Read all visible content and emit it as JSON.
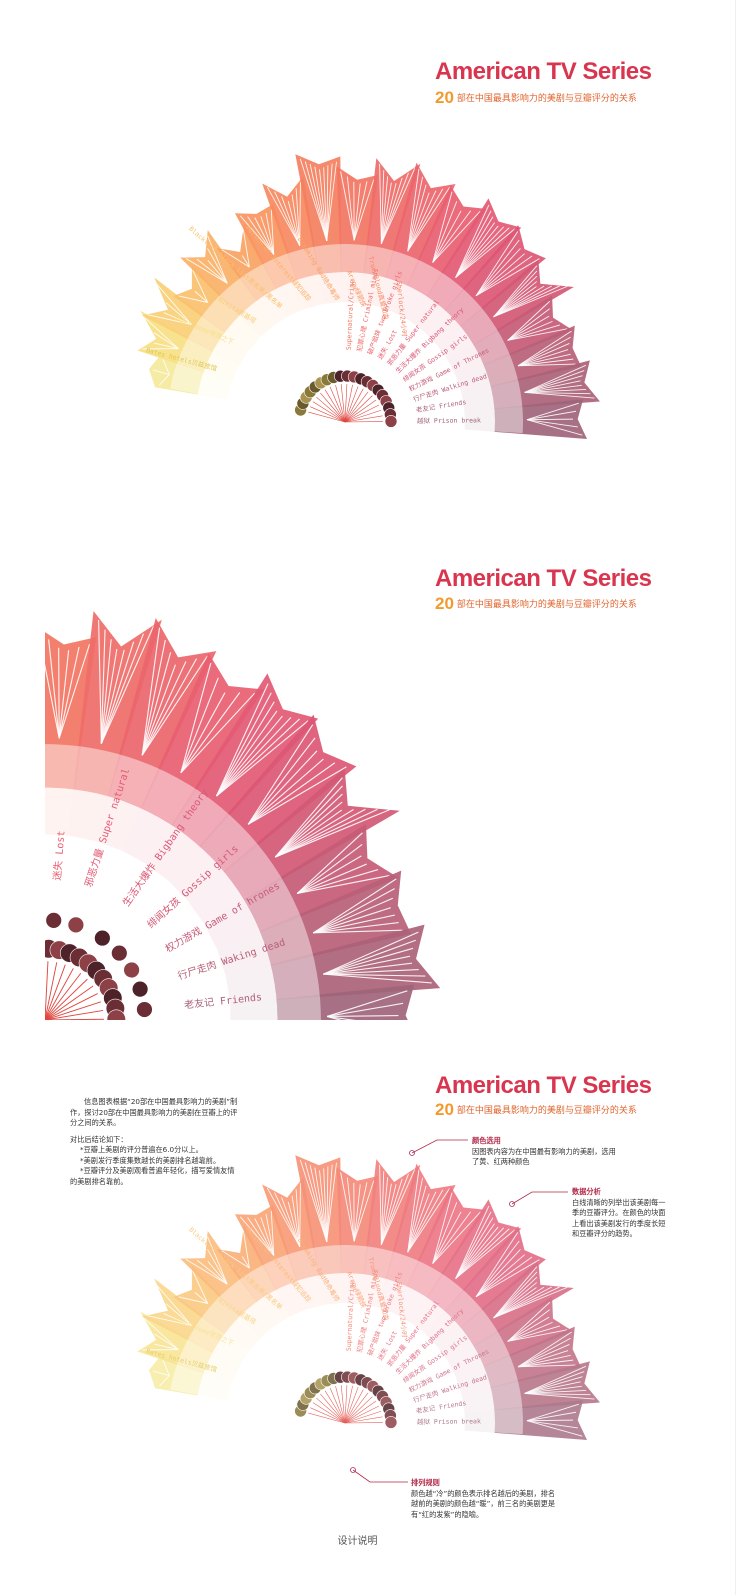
{
  "header": {
    "title": "American TV Series",
    "subtitle_number": "20",
    "subtitle_text": "部在中国最具影响力的美剧与豆瓣评分的关系"
  },
  "chart_data": {
    "type": "radial bar",
    "series": [
      {
        "label": "Bates hotels贝兹旅馆",
        "color": "#f5e99a"
      },
      {
        "label": "Under dome穹顶之下",
        "color": "#f7df84"
      },
      {
        "label": "Nikita妮基塔",
        "color": "#f9cf77"
      },
      {
        "label": "Blacklist black list黑名单/黑名单",
        "color": "#fac06e"
      },
      {
        "label": "Person of Interest疑犯追踪",
        "color": "#fab168"
      },
      {
        "label": "Breaking Bad绝命毒师",
        "color": "#f9a362"
      },
      {
        "label": "Arrow绿箭侠",
        "color": "#f89561"
      },
      {
        "label": "True Blood真爱如血",
        "color": "#f6895f"
      },
      {
        "label": "Sherlock/24小时",
        "color": "#f47f60"
      },
      {
        "label": "Supernatural/Crime",
        "color": "#f27563"
      },
      {
        "label": "犯罪心理 Criminal minds",
        "color": "#ef6d68"
      },
      {
        "label": "破产姐妹 two broke girls",
        "color": "#ec666d"
      },
      {
        "label": "迷失 Lost",
        "color": "#e85f71"
      },
      {
        "label": "邪恶力量 Super natural",
        "color": "#e35a74"
      },
      {
        "label": "生活大爆炸 Bigbang theory",
        "color": "#dc5775"
      },
      {
        "label": "绯闻女孩 Gossip girls",
        "color": "#d25875"
      },
      {
        "label": "权力游戏 Game of Thrones",
        "color": "#c65b76"
      },
      {
        "label": "行尸走肉 Walking dead",
        "color": "#b85f77"
      },
      {
        "label": "老友记 Friends",
        "color": "#ab6278"
      },
      {
        "label": "越狱 Prison break",
        "color": "#a06479"
      }
    ]
  },
  "zoom_labels": [
    {
      "text": "迷失 Lost"
    },
    {
      "text": "邪恶力量 Super natural"
    },
    {
      "text": "生活大爆炸 Bigbang theory"
    },
    {
      "text": "绯闻女孩  Gossip girls"
    },
    {
      "text": "权力游戏 Game of hrones"
    },
    {
      "text": "行尸走肉 Waking dead"
    },
    {
      "text": "老友记  Friends"
    }
  ],
  "intro": {
    "p1": "信息图表根据“20部在中国最具影响力的美剧”制作，探讨20部在中国最具影响力的美剧在豆瓣上的评分之间的关系。",
    "p2": "对比后结论如下：",
    "p3": "*豆瓣上美剧的评分普遍在6.0分以上。",
    "p4": "*美剧发行季度集数越长的美剧排名越靠前。",
    "p5": "*豆瓣评分及美剧观看普遍年轻化，描写爱情友情的美剧排名靠前。"
  },
  "notes": {
    "color_title": "颜色选用",
    "color_body": "因图表内容为在中国最有影响力的美剧，选用了黄、红两种颜色",
    "data_title": "数据分析",
    "data_body": "白线清晰的列举出该美剧每一季的豆瓣评分。在颜色的块面上看出该美剧发行的季度长短和豆瓣评分的趋势。",
    "order_title": "排列规则",
    "order_body": "颜色越“冷”的颜色表示排名越后的美剧，排名越前的美剧的颜色越“暖”，前三名的美剧更是有“红的发紫”的隐喻。"
  },
  "caption": "设计说明"
}
